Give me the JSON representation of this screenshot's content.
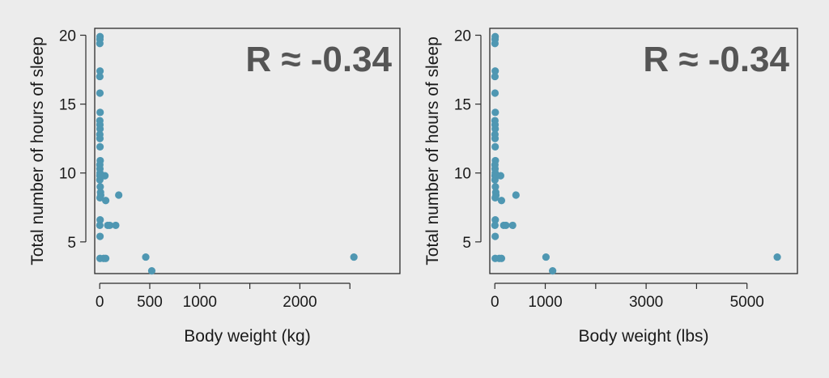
{
  "colors": {
    "background": "#ececec",
    "panel": "#ececec",
    "frame": "#2b2b2b",
    "point": "#4f97b2",
    "annotation": "#555555"
  },
  "chart_data": [
    {
      "type": "scatter",
      "title": "",
      "annotation": "R ≈ -0.34",
      "xlabel": "Body weight (kg)",
      "ylabel": "Total number of hours of sleep",
      "xlim": [
        -50,
        3000
      ],
      "ylim": [
        2.7,
        20.5
      ],
      "xticks": [
        0,
        500,
        1000,
        2000
      ],
      "xticks_minor": [
        1500,
        2500
      ],
      "yticks": [
        5,
        10,
        15,
        20
      ],
      "grid": false,
      "x": [
        3,
        2,
        1,
        3,
        1,
        2,
        4,
        1,
        2,
        3,
        1,
        2,
        3,
        5,
        1,
        2,
        3,
        2,
        4,
        1,
        5,
        8,
        10,
        3,
        14,
        52,
        60,
        4,
        1,
        80,
        190,
        3,
        100,
        160,
        3,
        40,
        60,
        460,
        520,
        2540
      ],
      "y": [
        19.9,
        19.7,
        19.4,
        17.4,
        17.0,
        15.8,
        14.4,
        13.8,
        13.5,
        13.2,
        12.8,
        12.5,
        11.9,
        10.9,
        10.6,
        10.3,
        10.0,
        9.8,
        9.8,
        9.5,
        9.0,
        8.6,
        8.4,
        8.2,
        9.8,
        9.8,
        8.0,
        6.6,
        6.2,
        6.2,
        8.4,
        5.4,
        6.2,
        6.2,
        3.8,
        3.8,
        3.8,
        3.9,
        2.9,
        3.9
      ]
    },
    {
      "type": "scatter",
      "title": "",
      "annotation": "R ≈ -0.34",
      "xlabel": "Body weight (lbs)",
      "ylabel": "Total number of hours of sleep",
      "xlim": [
        -100,
        6000
      ],
      "ylim": [
        2.7,
        20.5
      ],
      "xticks": [
        0,
        1000,
        3000,
        5000
      ],
      "xticks_minor": [
        2000,
        4000
      ],
      "yticks": [
        5,
        10,
        15,
        20
      ],
      "grid": false,
      "x": [
        7,
        4,
        2,
        7,
        2,
        4,
        9,
        2,
        4,
        7,
        2,
        4,
        7,
        11,
        2,
        4,
        7,
        4,
        9,
        2,
        11,
        18,
        22,
        7,
        31,
        115,
        132,
        9,
        2,
        176,
        419,
        7,
        220,
        353,
        7,
        88,
        132,
        1014,
        1146,
        5600
      ],
      "y": [
        19.9,
        19.7,
        19.4,
        17.4,
        17.0,
        15.8,
        14.4,
        13.8,
        13.5,
        13.2,
        12.8,
        12.5,
        11.9,
        10.9,
        10.6,
        10.3,
        10.0,
        9.8,
        9.8,
        9.5,
        9.0,
        8.6,
        8.4,
        8.2,
        9.8,
        9.8,
        8.0,
        6.6,
        6.2,
        6.2,
        8.4,
        5.4,
        6.2,
        6.2,
        3.8,
        3.8,
        3.8,
        3.9,
        2.9,
        3.9
      ]
    }
  ]
}
